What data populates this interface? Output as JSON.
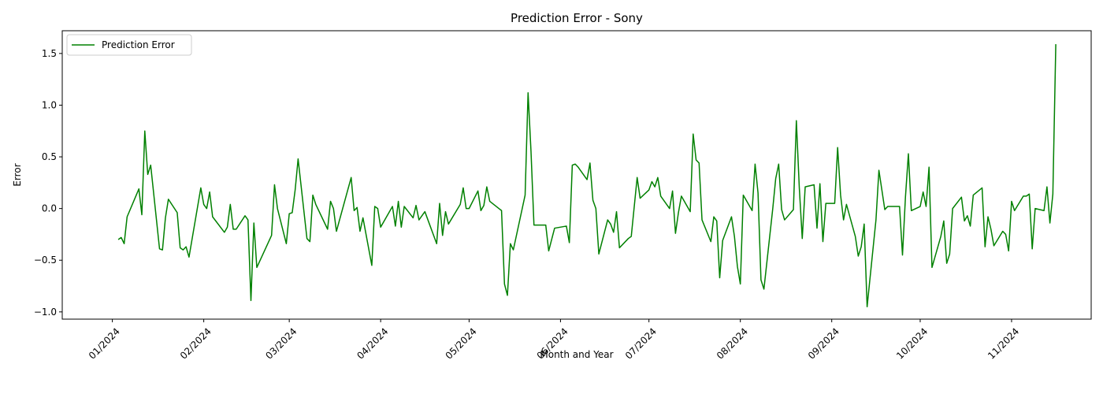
{
  "chart_data": {
    "type": "line",
    "title": "Prediction Error - Sony",
    "xlabel": "Month and Year",
    "ylabel": "Error",
    "x_ticks": [
      {
        "date": "2024-01-01",
        "label": "01/2024"
      },
      {
        "date": "2024-02-01",
        "label": "02/2024"
      },
      {
        "date": "2024-03-01",
        "label": "03/2024"
      },
      {
        "date": "2024-04-01",
        "label": "04/2024"
      },
      {
        "date": "2024-05-01",
        "label": "05/2024"
      },
      {
        "date": "2024-06-01",
        "label": "06/2024"
      },
      {
        "date": "2024-07-01",
        "label": "07/2024"
      },
      {
        "date": "2024-08-01",
        "label": "08/2024"
      },
      {
        "date": "2024-09-01",
        "label": "09/2024"
      },
      {
        "date": "2024-10-01",
        "label": "10/2024"
      },
      {
        "date": "2024-11-01",
        "label": "11/2024"
      }
    ],
    "y_ticks": [
      -1.0,
      -0.5,
      0.0,
      0.5,
      1.0,
      1.5
    ],
    "y_tick_labels": [
      "−1.0",
      "−0.5",
      "0.0",
      "0.5",
      "1.0",
      "1.5"
    ],
    "xlim": [
      "2023-12-15",
      "2024-11-28"
    ],
    "ylim": [
      -1.07,
      1.72
    ],
    "grid": false,
    "legend_position": "top-left",
    "series": [
      {
        "name": "Prediction Error",
        "color": "#008000",
        "points": [
          [
            "2024-01-03",
            -0.3
          ],
          [
            "2024-01-04",
            -0.28
          ],
          [
            "2024-01-05",
            -0.34
          ],
          [
            "2024-01-06",
            -0.08
          ],
          [
            "2024-01-10",
            0.19
          ],
          [
            "2024-01-11",
            -0.06
          ],
          [
            "2024-01-12",
            0.75
          ],
          [
            "2024-01-13",
            0.33
          ],
          [
            "2024-01-14",
            0.42
          ],
          [
            "2024-01-17",
            -0.39
          ],
          [
            "2024-01-18",
            -0.4
          ],
          [
            "2024-01-19",
            -0.09
          ],
          [
            "2024-01-20",
            0.09
          ],
          [
            "2024-01-23",
            -0.04
          ],
          [
            "2024-01-24",
            -0.38
          ],
          [
            "2024-01-25",
            -0.4
          ],
          [
            "2024-01-26",
            -0.37
          ],
          [
            "2024-01-27",
            -0.47
          ],
          [
            "2024-01-31",
            0.2
          ],
          [
            "2024-02-01",
            0.04
          ],
          [
            "2024-02-02",
            0.0
          ],
          [
            "2024-02-03",
            0.16
          ],
          [
            "2024-02-04",
            -0.08
          ],
          [
            "2024-02-08",
            -0.23
          ],
          [
            "2024-02-09",
            -0.18
          ],
          [
            "2024-02-10",
            0.04
          ],
          [
            "2024-02-11",
            -0.2
          ],
          [
            "2024-02-12",
            -0.2
          ],
          [
            "2024-02-15",
            -0.07
          ],
          [
            "2024-02-16",
            -0.11
          ],
          [
            "2024-02-17",
            -0.89
          ],
          [
            "2024-02-18",
            -0.14
          ],
          [
            "2024-02-19",
            -0.57
          ],
          [
            "2024-02-24",
            -0.26
          ],
          [
            "2024-02-25",
            0.23
          ],
          [
            "2024-02-26",
            0.0
          ],
          [
            "2024-02-29",
            -0.34
          ],
          [
            "2024-03-01",
            -0.05
          ],
          [
            "2024-03-02",
            -0.04
          ],
          [
            "2024-03-03",
            0.18
          ],
          [
            "2024-03-04",
            0.48
          ],
          [
            "2024-03-07",
            -0.29
          ],
          [
            "2024-03-08",
            -0.32
          ],
          [
            "2024-03-09",
            0.13
          ],
          [
            "2024-03-10",
            0.04
          ],
          [
            "2024-03-14",
            -0.2
          ],
          [
            "2024-03-15",
            0.07
          ],
          [
            "2024-03-16",
            0.0
          ],
          [
            "2024-03-17",
            -0.22
          ],
          [
            "2024-03-22",
            0.3
          ],
          [
            "2024-03-23",
            -0.02
          ],
          [
            "2024-03-24",
            0.01
          ],
          [
            "2024-03-25",
            -0.22
          ],
          [
            "2024-03-26",
            -0.09
          ],
          [
            "2024-03-29",
            -0.55
          ],
          [
            "2024-03-30",
            0.02
          ],
          [
            "2024-03-31",
            0.0
          ],
          [
            "2024-04-01",
            -0.18
          ],
          [
            "2024-04-05",
            0.02
          ],
          [
            "2024-04-06",
            -0.17
          ],
          [
            "2024-04-07",
            0.07
          ],
          [
            "2024-04-08",
            -0.18
          ],
          [
            "2024-04-09",
            0.02
          ],
          [
            "2024-04-12",
            -0.09
          ],
          [
            "2024-04-13",
            0.03
          ],
          [
            "2024-04-14",
            -0.11
          ],
          [
            "2024-04-16",
            -0.03
          ],
          [
            "2024-04-20",
            -0.34
          ],
          [
            "2024-04-21",
            0.05
          ],
          [
            "2024-04-22",
            -0.26
          ],
          [
            "2024-04-23",
            -0.03
          ],
          [
            "2024-04-24",
            -0.15
          ],
          [
            "2024-04-28",
            0.04
          ],
          [
            "2024-04-29",
            0.2
          ],
          [
            "2024-04-30",
            0.0
          ],
          [
            "2024-05-01",
            0.0
          ],
          [
            "2024-05-04",
            0.17
          ],
          [
            "2024-05-05",
            -0.02
          ],
          [
            "2024-05-06",
            0.03
          ],
          [
            "2024-05-07",
            0.21
          ],
          [
            "2024-05-08",
            0.07
          ],
          [
            "2024-05-12",
            -0.02
          ],
          [
            "2024-05-13",
            -0.73
          ],
          [
            "2024-05-14",
            -0.84
          ],
          [
            "2024-05-15",
            -0.34
          ],
          [
            "2024-05-16",
            -0.4
          ],
          [
            "2024-05-20",
            0.13
          ],
          [
            "2024-05-21",
            1.12
          ],
          [
            "2024-05-22",
            0.55
          ],
          [
            "2024-05-23",
            -0.16
          ],
          [
            "2024-05-27",
            -0.16
          ],
          [
            "2024-05-28",
            -0.41
          ],
          [
            "2024-05-29",
            -0.3
          ],
          [
            "2024-05-30",
            -0.19
          ],
          [
            "2024-06-03",
            -0.17
          ],
          [
            "2024-06-04",
            -0.33
          ],
          [
            "2024-06-05",
            0.42
          ],
          [
            "2024-06-06",
            0.43
          ],
          [
            "2024-06-07",
            0.4
          ],
          [
            "2024-06-10",
            0.28
          ],
          [
            "2024-06-11",
            0.44
          ],
          [
            "2024-06-12",
            0.08
          ],
          [
            "2024-06-13",
            0.0
          ],
          [
            "2024-06-14",
            -0.44
          ],
          [
            "2024-06-17",
            -0.11
          ],
          [
            "2024-06-18",
            -0.15
          ],
          [
            "2024-06-19",
            -0.23
          ],
          [
            "2024-06-20",
            -0.03
          ],
          [
            "2024-06-21",
            -0.38
          ],
          [
            "2024-06-24",
            -0.29
          ],
          [
            "2024-06-25",
            -0.27
          ],
          [
            "2024-06-27",
            0.3
          ],
          [
            "2024-06-28",
            0.1
          ],
          [
            "2024-07-01",
            0.18
          ],
          [
            "2024-07-02",
            0.26
          ],
          [
            "2024-07-03",
            0.21
          ],
          [
            "2024-07-04",
            0.3
          ],
          [
            "2024-07-05",
            0.12
          ],
          [
            "2024-07-08",
            0.0
          ],
          [
            "2024-07-09",
            0.17
          ],
          [
            "2024-07-10",
            -0.24
          ],
          [
            "2024-07-11",
            -0.04
          ],
          [
            "2024-07-12",
            0.12
          ],
          [
            "2024-07-15",
            -0.03
          ],
          [
            "2024-07-16",
            0.72
          ],
          [
            "2024-07-17",
            0.47
          ],
          [
            "2024-07-18",
            0.44
          ],
          [
            "2024-07-19",
            -0.11
          ],
          [
            "2024-07-22",
            -0.32
          ],
          [
            "2024-07-23",
            -0.08
          ],
          [
            "2024-07-24",
            -0.12
          ],
          [
            "2024-07-25",
            -0.67
          ],
          [
            "2024-07-26",
            -0.31
          ],
          [
            "2024-07-29",
            -0.08
          ],
          [
            "2024-07-30",
            -0.27
          ],
          [
            "2024-07-31",
            -0.56
          ],
          [
            "2024-08-01",
            -0.73
          ],
          [
            "2024-08-02",
            0.13
          ],
          [
            "2024-08-05",
            -0.02
          ],
          [
            "2024-08-06",
            0.43
          ],
          [
            "2024-08-07",
            0.15
          ],
          [
            "2024-08-08",
            -0.69
          ],
          [
            "2024-08-09",
            -0.78
          ],
          [
            "2024-08-12",
            0.0
          ],
          [
            "2024-08-13",
            0.29
          ],
          [
            "2024-08-14",
            0.43
          ],
          [
            "2024-08-15",
            -0.01
          ],
          [
            "2024-08-16",
            -0.11
          ],
          [
            "2024-08-19",
            -0.01
          ],
          [
            "2024-08-20",
            0.85
          ],
          [
            "2024-08-21",
            0.2
          ],
          [
            "2024-08-22",
            -0.29
          ],
          [
            "2024-08-23",
            0.21
          ],
          [
            "2024-08-26",
            0.23
          ],
          [
            "2024-08-27",
            -0.19
          ],
          [
            "2024-08-28",
            0.24
          ],
          [
            "2024-08-29",
            -0.32
          ],
          [
            "2024-08-30",
            0.05
          ],
          [
            "2024-09-02",
            0.05
          ],
          [
            "2024-09-03",
            0.59
          ],
          [
            "2024-09-04",
            0.13
          ],
          [
            "2024-09-05",
            -0.11
          ],
          [
            "2024-09-06",
            0.04
          ],
          [
            "2024-09-09",
            -0.27
          ],
          [
            "2024-09-10",
            -0.46
          ],
          [
            "2024-09-11",
            -0.37
          ],
          [
            "2024-09-12",
            -0.15
          ],
          [
            "2024-09-13",
            -0.95
          ],
          [
            "2024-09-16",
            -0.11
          ],
          [
            "2024-09-17",
            0.37
          ],
          [
            "2024-09-18",
            0.18
          ],
          [
            "2024-09-19",
            -0.01
          ],
          [
            "2024-09-20",
            0.02
          ],
          [
            "2024-09-23",
            0.02
          ],
          [
            "2024-09-24",
            0.02
          ],
          [
            "2024-09-25",
            -0.45
          ],
          [
            "2024-09-26",
            0.11
          ],
          [
            "2024-09-27",
            0.53
          ],
          [
            "2024-09-28",
            -0.02
          ],
          [
            "2024-10-01",
            0.02
          ],
          [
            "2024-10-02",
            0.16
          ],
          [
            "2024-10-03",
            0.02
          ],
          [
            "2024-10-04",
            0.4
          ],
          [
            "2024-10-05",
            -0.57
          ],
          [
            "2024-10-08",
            -0.27
          ],
          [
            "2024-10-09",
            -0.12
          ],
          [
            "2024-10-10",
            -0.53
          ],
          [
            "2024-10-11",
            -0.44
          ],
          [
            "2024-10-12",
            0.0
          ],
          [
            "2024-10-15",
            0.11
          ],
          [
            "2024-10-16",
            -0.12
          ],
          [
            "2024-10-17",
            -0.07
          ],
          [
            "2024-10-18",
            -0.17
          ],
          [
            "2024-10-19",
            0.13
          ],
          [
            "2024-10-22",
            0.2
          ],
          [
            "2024-10-23",
            -0.37
          ],
          [
            "2024-10-24",
            -0.08
          ],
          [
            "2024-10-25",
            -0.2
          ],
          [
            "2024-10-26",
            -0.36
          ],
          [
            "2024-10-29",
            -0.22
          ],
          [
            "2024-10-30",
            -0.25
          ],
          [
            "2024-10-31",
            -0.41
          ],
          [
            "2024-11-01",
            0.07
          ],
          [
            "2024-11-02",
            -0.02
          ],
          [
            "2024-11-05",
            0.12
          ],
          [
            "2024-11-06",
            0.12
          ],
          [
            "2024-11-07",
            0.14
          ],
          [
            "2024-11-08",
            -0.39
          ],
          [
            "2024-11-09",
            0.0
          ],
          [
            "2024-11-12",
            -0.02
          ],
          [
            "2024-11-13",
            0.21
          ],
          [
            "2024-11-14",
            -0.14
          ],
          [
            "2024-11-15",
            0.14
          ],
          [
            "2024-11-16",
            1.59
          ]
        ]
      }
    ]
  }
}
